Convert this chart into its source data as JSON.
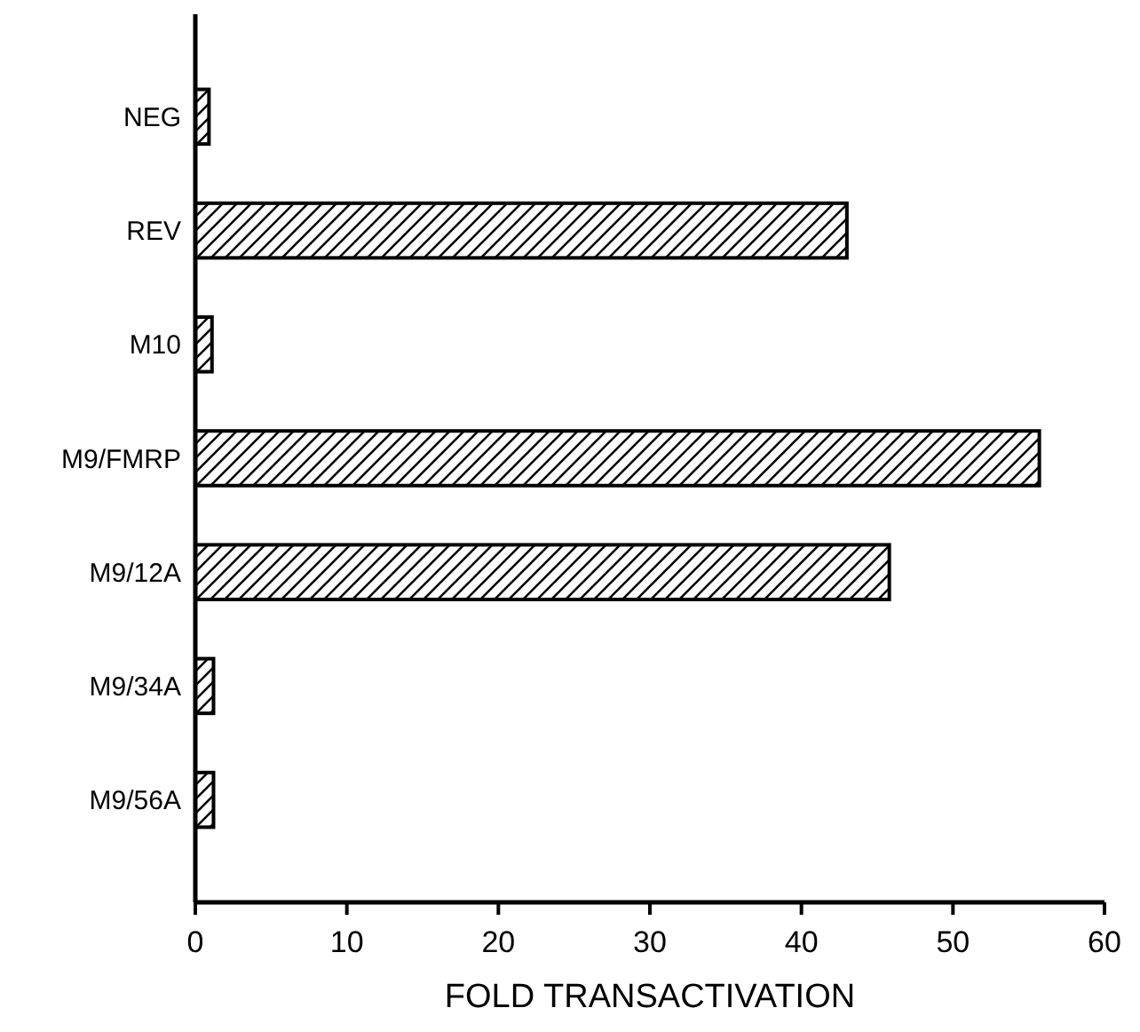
{
  "chart_data": {
    "type": "bar",
    "orientation": "horizontal",
    "xlabel": "FOLD TRANSACTIVATION",
    "categories": [
      "NEG",
      "REV",
      "M10",
      "M9/FMRP",
      "M9/12A",
      "M9/34A",
      "M9/56A"
    ],
    "values": [
      0.9,
      43,
      1.1,
      55.7,
      45.8,
      1.2,
      1.2
    ],
    "color": "#000000",
    "xlim": [
      0,
      60
    ],
    "xticks": [
      0,
      10,
      20,
      30,
      40,
      50,
      60
    ]
  }
}
